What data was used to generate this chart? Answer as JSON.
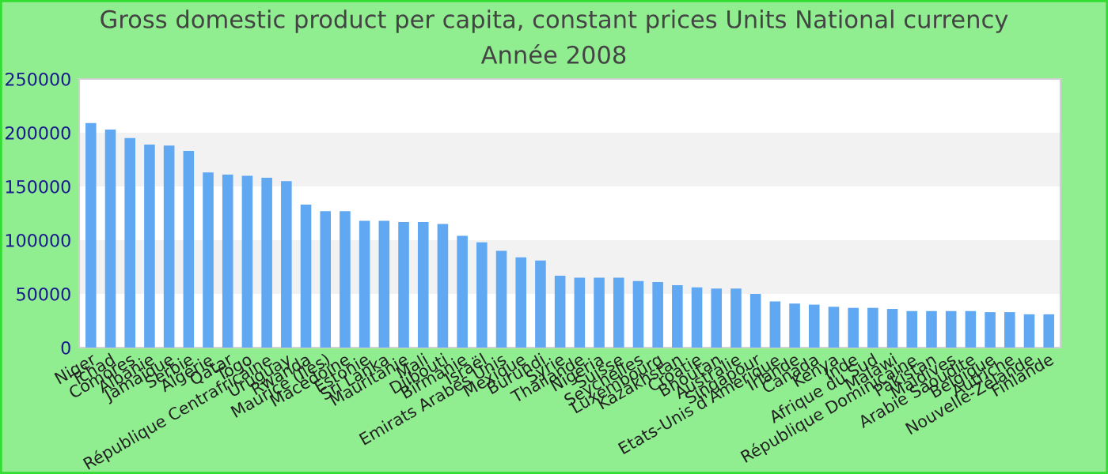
{
  "chart_data": {
    "type": "bar",
    "title": "Gross domestic product per capita, constant prices Units National currency",
    "subtitle": "Année 2008",
    "categories": [
      "Niger",
      "Tchad",
      "Comores",
      "Albanie",
      "Jamaïque",
      "Serbie",
      "Algérie",
      "Qatar",
      "Togo",
      "République Centrafricaine",
      "Uruguay",
      "Rwanda",
      "Maurice (Iles)",
      "Macédoine",
      "Estonie",
      "Sri Lanka",
      "Mauritanie",
      "Mali",
      "Djibouti",
      "Birmanie",
      "Israël",
      "Emirats Arabes Unis",
      "Mexique",
      "Burundi",
      "Syrie",
      "Thaïlande",
      "Nigeria",
      "Suisse",
      "Seychelles",
      "Luxembourg",
      "Kazakhstan",
      "Croatie",
      "Bhoutan",
      "Australie",
      "Singapour",
      "Etats-Unis d'Amérique",
      "Irlande",
      "Canada",
      "Kenya",
      "Inde",
      "Afrique du Sud",
      "Malawi",
      "République Dominicaine",
      "Pakistan",
      "Maldives",
      "Arabie Saoudite",
      "Belgique",
      "Autriche",
      "Nouvelle-Zélande",
      "Finlande"
    ],
    "values": [
      209000,
      203000,
      195000,
      189000,
      188000,
      183000,
      163000,
      161000,
      160000,
      158000,
      155000,
      133000,
      127000,
      127000,
      118000,
      118000,
      117000,
      117000,
      115000,
      104000,
      98000,
      90000,
      84000,
      81000,
      67000,
      65000,
      65000,
      65000,
      62000,
      61000,
      58000,
      56000,
      55000,
      55000,
      50000,
      43000,
      41000,
      40000,
      38000,
      37000,
      37000,
      36000,
      34000,
      34000,
      34000,
      34000,
      33000,
      33000,
      31000,
      31000
    ],
    "color": "#61a8f2",
    "ylim": [
      0,
      250000
    ],
    "yticks": [
      0,
      50000,
      100000,
      150000,
      200000,
      250000
    ],
    "bands": [
      {
        "axis": "y",
        "from": 50000,
        "to": 100000,
        "color": "#f2f2f2"
      },
      {
        "axis": "y",
        "from": 150000,
        "to": 200000,
        "color": "#f2f2f2"
      }
    ]
  }
}
